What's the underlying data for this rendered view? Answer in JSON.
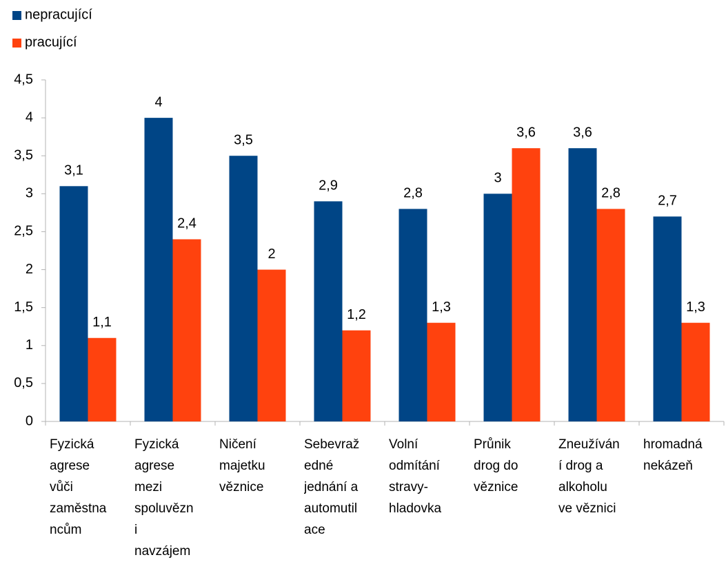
{
  "chart_data": {
    "type": "bar",
    "categories": [
      "Fyzická\nagrese\nvůči\nzaměstna\nncům",
      "Fyzická\nagrese\nmezi\nspoluvězn\ni\nnavzájem",
      "Ničení\nmajetku\nvěznice",
      "Sebevraž\nedné\njednání a\nautomutil\nace",
      "Volní\nodmítání\nstravy-\nhladovka",
      "Průnik\ndrog do\nvěznice",
      "Zneužíván\ní drog a\nalkoholu\nve věznici",
      "hromadná\nnekázeň"
    ],
    "series": [
      {
        "name": "nepracující",
        "color": "#004586",
        "values": [
          3.1,
          4,
          3.5,
          2.9,
          2.8,
          3,
          3.6,
          2.7
        ],
        "value_labels": [
          "3,1",
          "4",
          "3,5",
          "2,9",
          "2,8",
          "3",
          "3,6",
          "2,7"
        ]
      },
      {
        "name": "pracující",
        "color": "#ff420e",
        "values": [
          1.1,
          2.4,
          2,
          1.2,
          1.3,
          3.6,
          2.8,
          1.3
        ],
        "value_labels": [
          "1,1",
          "2,4",
          "2",
          "1,2",
          "1,3",
          "3,6",
          "2,8",
          "1,3"
        ]
      }
    ],
    "ylim": [
      0,
      4.5
    ],
    "yticks": [
      0,
      {
        "value": 0.5,
        "label": "0,5"
      },
      1,
      {
        "value": 1.5,
        "label": "1,5"
      },
      2,
      {
        "value": 2.5,
        "label": "2,5"
      },
      3,
      {
        "value": 3.5,
        "label": "3,5"
      },
      4,
      {
        "value": 4.5,
        "label": "4,5"
      }
    ],
    "grid": false
  }
}
